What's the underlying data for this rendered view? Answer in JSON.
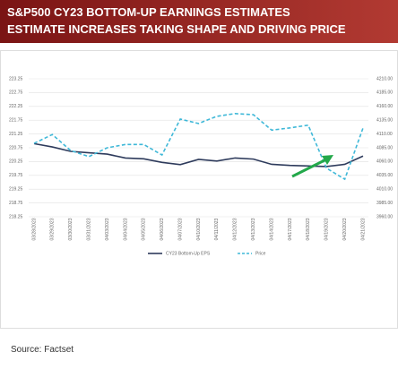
{
  "chart_data": {
    "type": "line",
    "title": "S&P500 CY23 BOTTOM-UP EARNINGS ESTIMATES",
    "subtitle": "ESTIMATE INCREASES TAKING SHAPE AND DRIVING PRICE",
    "categories": [
      "03/28/2023",
      "03/29/2023",
      "03/30/2023",
      "03/31/2023",
      "04/03/2023",
      "04/04/2023",
      "04/05/2023",
      "04/06/2023",
      "04/07/2023",
      "04/10/2023",
      "04/11/2023",
      "04/12/2023",
      "04/13/2023",
      "04/14/2023",
      "04/17/2023",
      "04/18/2023",
      "04/19/2023",
      "04/20/2023",
      "04/21/2023"
    ],
    "series": [
      {
        "name": "CY23 Bottom-Up EPS",
        "color": "#2e3b5c",
        "values": [
          220.9,
          220.78,
          220.62,
          220.57,
          220.52,
          220.38,
          220.35,
          220.22,
          220.14,
          220.33,
          220.27,
          220.38,
          220.34,
          220.15,
          220.11,
          220.09,
          220.07,
          220.15,
          220.45
        ]
      },
      {
        "name": "Price",
        "color": "#3fb8d8",
        "axis": "y2",
        "values": [
          4093,
          4109,
          4080,
          4069,
          4085,
          4091,
          4091,
          4072,
          4137,
          4129,
          4142,
          4147,
          4145,
          4117,
          4121,
          4126,
          4048,
          4028,
          4121
        ]
      }
    ],
    "ylim": [
      218.25,
      223.25
    ],
    "yticks": [
      218.25,
      218.75,
      219.25,
      219.75,
      220.25,
      220.75,
      221.25,
      221.75,
      222.25,
      222.75,
      223.25
    ],
    "y2lim": [
      3960,
      4210
    ],
    "y2ticks": [
      {
        "value": 3960,
        "label": "3960.00"
      },
      {
        "value": 3985,
        "label": "3985.00"
      },
      {
        "value": 4010,
        "label": "4010.00"
      },
      {
        "value": 4035,
        "label": "4035.00"
      },
      {
        "value": 4060,
        "label": "4060.00"
      },
      {
        "value": 4085,
        "label": "4085.00"
      },
      {
        "value": 4110,
        "label": "4110.00"
      },
      {
        "value": 4135,
        "label": "4135.00"
      },
      {
        "value": 4160,
        "label": "4160.00"
      },
      {
        "value": 4185,
        "label": "4185.00"
      },
      {
        "value": 4210,
        "label": "4210.00"
      }
    ],
    "grid": true,
    "legend": "bottom",
    "source": "Source: Factset"
  }
}
